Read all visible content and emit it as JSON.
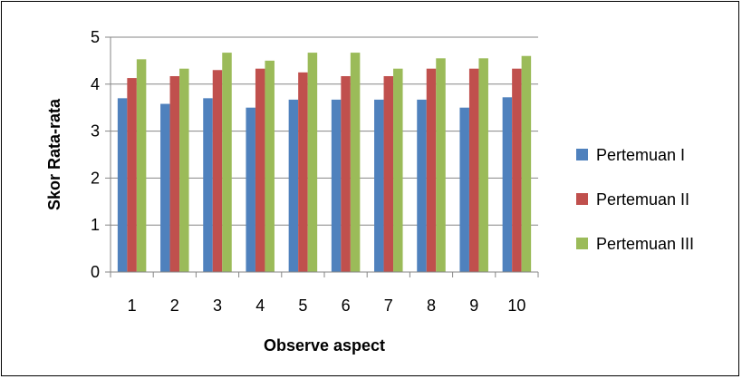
{
  "chart_data": {
    "type": "bar",
    "title": "",
    "xlabel": "Observe aspect",
    "ylabel": "Skor Rata-rata",
    "categories": [
      "1",
      "2",
      "3",
      "4",
      "5",
      "6",
      "7",
      "8",
      "9",
      "10"
    ],
    "ylim": [
      0,
      5
    ],
    "yticks": [
      "0",
      "1",
      "2",
      "3",
      "4",
      "5"
    ],
    "grid": "horizontal",
    "legend_position": "right",
    "series": [
      {
        "name": "Pertemuan I",
        "color": "#4F81BD",
        "values": [
          3.7,
          3.58,
          3.7,
          3.5,
          3.67,
          3.67,
          3.67,
          3.67,
          3.5,
          3.72
        ]
      },
      {
        "name": "Pertemuan II",
        "color": "#C0504D",
        "values": [
          4.13,
          4.17,
          4.3,
          4.33,
          4.25,
          4.17,
          4.17,
          4.33,
          4.33,
          4.33
        ]
      },
      {
        "name": "Pertemuan III",
        "color": "#9BBB59",
        "values": [
          4.53,
          4.33,
          4.67,
          4.5,
          4.67,
          4.67,
          4.33,
          4.55,
          4.55,
          4.6
        ]
      }
    ]
  }
}
